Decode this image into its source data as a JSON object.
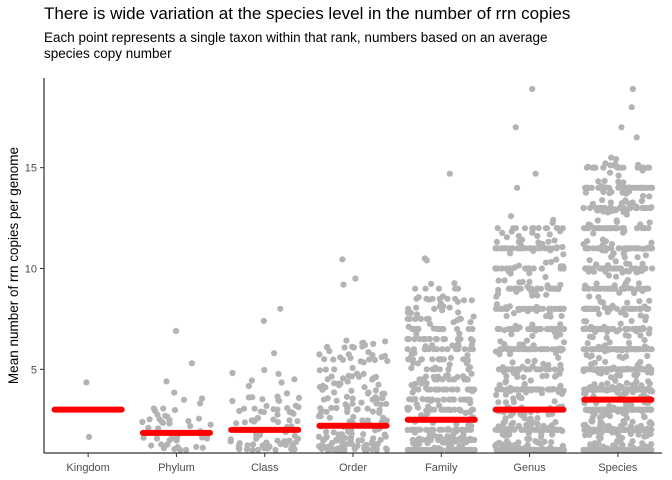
{
  "chart_data": {
    "type": "scatter",
    "title": "There is wide variation at the species level in the number of rrn copies",
    "subtitle": "Each point represents a single taxon within that rank, numbers based on an average species copy number",
    "xlabel": "",
    "ylabel": "Mean number of rrn copies per genome",
    "categories": [
      "Kingdom",
      "Phylum",
      "Class",
      "Order",
      "Family",
      "Genus",
      "Species"
    ],
    "y_ticks": [
      5,
      10,
      15
    ],
    "ylim": [
      1,
      19
    ],
    "grid": false,
    "point_color": "#b3b3b3",
    "mean_color": "#ff0000",
    "means": [
      3.0,
      1.85,
      2.0,
      2.2,
      2.5,
      3.0,
      3.5
    ],
    "highlighted_points": [
      {
        "category": "Kingdom",
        "y": 4.35
      },
      {
        "category": "Kingdom",
        "y": 1.65
      },
      {
        "category": "Phylum",
        "y": 6.9
      },
      {
        "category": "Phylum",
        "y": 5.3
      },
      {
        "category": "Phylum",
        "y": 4.4
      },
      {
        "category": "Class",
        "y": 8.0
      },
      {
        "category": "Class",
        "y": 7.4
      },
      {
        "category": "Class",
        "y": 5.8
      },
      {
        "category": "Order",
        "y": 10.45
      },
      {
        "category": "Order",
        "y": 9.5
      },
      {
        "category": "Order",
        "y": 9.2
      },
      {
        "category": "Family",
        "y": 14.7
      },
      {
        "category": "Family",
        "y": 10.5
      },
      {
        "category": "Family",
        "y": 10.4
      },
      {
        "category": "Genus",
        "y": 18.9
      },
      {
        "category": "Genus",
        "y": 17.0
      },
      {
        "category": "Genus",
        "y": 14.7
      },
      {
        "category": "Genus",
        "y": 14.0
      },
      {
        "category": "Genus",
        "y": 12.6
      },
      {
        "category": "Species",
        "y": 18.9
      },
      {
        "category": "Species",
        "y": 18.0
      },
      {
        "category": "Species",
        "y": 17.0
      },
      {
        "category": "Species",
        "y": 16.5
      },
      {
        "category": "Species",
        "y": 15.5
      }
    ],
    "point_counts": [
      2,
      45,
      85,
      190,
      420,
      700,
      1100
    ],
    "typical_max": [
      4.35,
      4.0,
      5.0,
      6.5,
      9.0,
      12.0,
      15.0
    ]
  }
}
